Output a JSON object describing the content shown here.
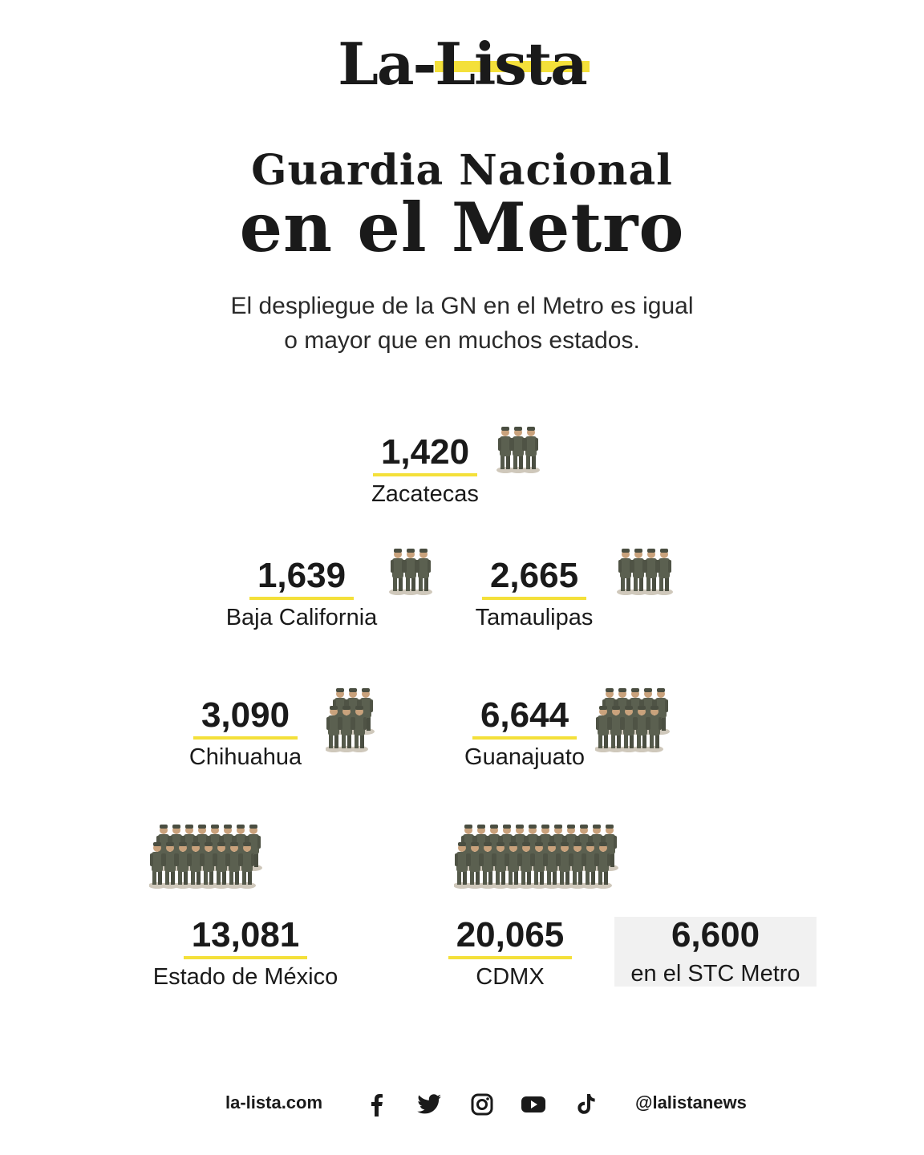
{
  "header": {
    "logo_left": "La-",
    "logo_right": "Lista"
  },
  "title": {
    "line1": "Guardia Nacional",
    "line2": "en el Metro"
  },
  "subtitle": "El despliegue de la GN en el Metro es igual o mayor que en muchos estados.",
  "stats": [
    {
      "value": "1,420",
      "label": "Zacatecas"
    },
    {
      "value": "1,639",
      "label": "Baja California"
    },
    {
      "value": "2,665",
      "label": "Tamaulipas"
    },
    {
      "value": "3,090",
      "label": "Chihuahua"
    },
    {
      "value": "6,644",
      "label": "Guanajuato"
    },
    {
      "value": "13,081",
      "label": "Estado de México"
    },
    {
      "value": "20,065",
      "label": "CDMX"
    },
    {
      "value": "6,600",
      "label": "en el STC Metro"
    }
  ],
  "footer": {
    "website": "la-lista.com",
    "handle": "@lalistanews"
  },
  "icons": [
    "soldier-icon",
    "facebook-icon",
    "twitter-icon",
    "instagram-icon",
    "youtube-icon",
    "tiktok-icon"
  ],
  "colors": {
    "accent": "#f4e03a",
    "text": "#1a1a1a",
    "highlight_bg": "#f1f1f1",
    "uniform": "#55594a"
  }
}
